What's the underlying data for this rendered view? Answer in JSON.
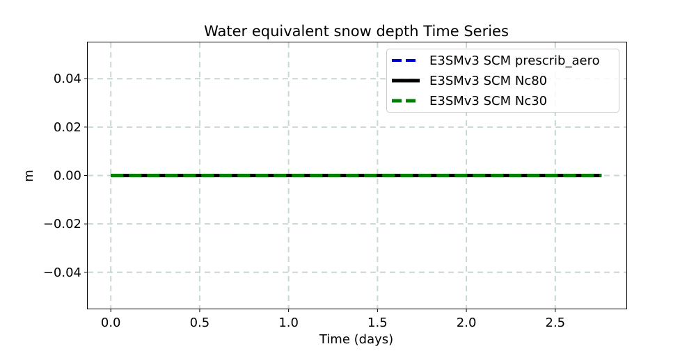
{
  "chart_data": {
    "type": "line",
    "title": "Water equivalent snow depth Time Series",
    "xlabel": "Time (days)",
    "ylabel": "m",
    "xlim": [
      -0.13,
      2.9
    ],
    "ylim": [
      -0.055,
      0.055
    ],
    "xticks": [
      0.0,
      0.5,
      1.0,
      1.5,
      2.0,
      2.5
    ],
    "xtick_labels": [
      "0.0",
      "0.5",
      "1.0",
      "1.5",
      "2.0",
      "2.5"
    ],
    "yticks": [
      0.04,
      0.02,
      0.0,
      -0.02,
      -0.04
    ],
    "ytick_labels": [
      "0.04",
      "0.02",
      "0.00",
      "−0.02",
      "−0.04"
    ],
    "grid": true,
    "legend_position": "top-right",
    "series": [
      {
        "name": "E3SMv3 SCM prescrib_aero",
        "color": "#0000cc",
        "style": "dashed",
        "x": [
          0.0,
          2.76
        ],
        "y": [
          0.0,
          0.0
        ]
      },
      {
        "name": "E3SMv3 SCM Nc80",
        "color": "#000000",
        "style": "solid",
        "x": [
          0.0,
          2.76
        ],
        "y": [
          0.0,
          0.0
        ]
      },
      {
        "name": "E3SMv3 SCM Nc30",
        "color": "#008000",
        "style": "dashed",
        "x": [
          0.0,
          2.76
        ],
        "y": [
          0.0,
          0.0
        ]
      }
    ]
  }
}
